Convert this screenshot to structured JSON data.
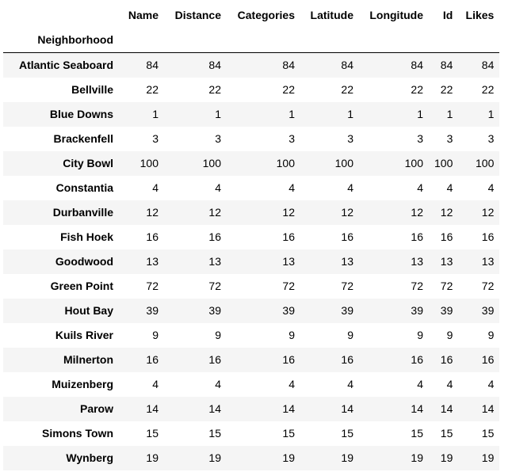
{
  "table": {
    "index_name": "Neighborhood",
    "columns": [
      "Name",
      "Distance",
      "Categories",
      "Latitude",
      "Longitude",
      "Id",
      "Likes"
    ],
    "rows": [
      {
        "label": "Atlantic Seaboard",
        "values": [
          "84",
          "84",
          "84",
          "84",
          "84",
          "84",
          "84"
        ]
      },
      {
        "label": "Bellville",
        "values": [
          "22",
          "22",
          "22",
          "22",
          "22",
          "22",
          "22"
        ]
      },
      {
        "label": "Blue Downs",
        "values": [
          "1",
          "1",
          "1",
          "1",
          "1",
          "1",
          "1"
        ]
      },
      {
        "label": "Brackenfell",
        "values": [
          "3",
          "3",
          "3",
          "3",
          "3",
          "3",
          "3"
        ]
      },
      {
        "label": "City Bowl",
        "values": [
          "100",
          "100",
          "100",
          "100",
          "100",
          "100",
          "100"
        ]
      },
      {
        "label": "Constantia",
        "values": [
          "4",
          "4",
          "4",
          "4",
          "4",
          "4",
          "4"
        ]
      },
      {
        "label": "Durbanville",
        "values": [
          "12",
          "12",
          "12",
          "12",
          "12",
          "12",
          "12"
        ]
      },
      {
        "label": "Fish Hoek",
        "values": [
          "16",
          "16",
          "16",
          "16",
          "16",
          "16",
          "16"
        ]
      },
      {
        "label": "Goodwood",
        "values": [
          "13",
          "13",
          "13",
          "13",
          "13",
          "13",
          "13"
        ]
      },
      {
        "label": "Green Point",
        "values": [
          "72",
          "72",
          "72",
          "72",
          "72",
          "72",
          "72"
        ]
      },
      {
        "label": "Hout Bay",
        "values": [
          "39",
          "39",
          "39",
          "39",
          "39",
          "39",
          "39"
        ]
      },
      {
        "label": "Kuils River",
        "values": [
          "9",
          "9",
          "9",
          "9",
          "9",
          "9",
          "9"
        ]
      },
      {
        "label": "Milnerton",
        "values": [
          "16",
          "16",
          "16",
          "16",
          "16",
          "16",
          "16"
        ]
      },
      {
        "label": "Muizenberg",
        "values": [
          "4",
          "4",
          "4",
          "4",
          "4",
          "4",
          "4"
        ]
      },
      {
        "label": "Parow",
        "values": [
          "14",
          "14",
          "14",
          "14",
          "14",
          "14",
          "14"
        ]
      },
      {
        "label": "Simons Town",
        "values": [
          "15",
          "15",
          "15",
          "15",
          "15",
          "15",
          "15"
        ]
      },
      {
        "label": "Wynberg",
        "values": [
          "19",
          "19",
          "19",
          "19",
          "19",
          "19",
          "19"
        ]
      }
    ]
  },
  "colors": {
    "stripe": "#f5f5f5",
    "background": "#ffffff",
    "header_rule": "#000000"
  }
}
